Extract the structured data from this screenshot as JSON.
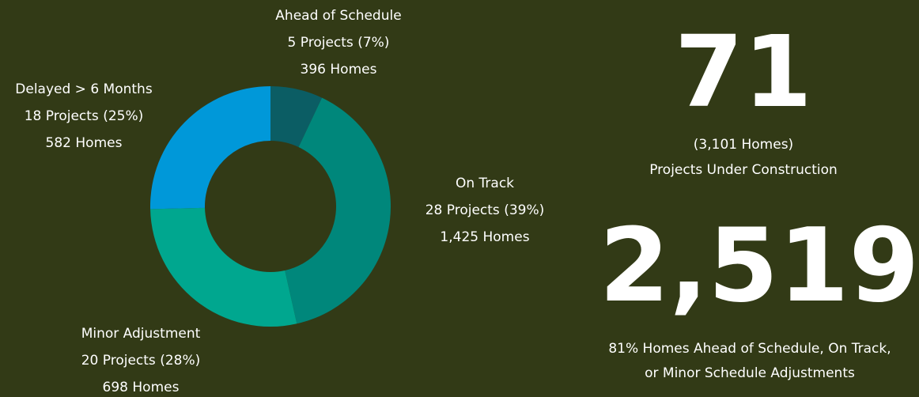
{
  "chart_data": {
    "type": "donut",
    "categories": [
      "Ahead of Schedule",
      "On Track",
      "Minor Adjustment",
      "Delayed > 6 Months"
    ],
    "values": [
      5,
      28,
      20,
      18
    ],
    "value_labels": [
      "5 Projects (7%)",
      "28 Projects (39%)",
      "20 Projects (28%)",
      "18 Projects (25%)"
    ],
    "homes": [
      396,
      1425,
      698,
      582
    ],
    "homes_labels": [
      "396 Homes",
      "1,425 Homes",
      "698 Homes",
      "582 Homes"
    ],
    "colors": [
      "#0b5d64",
      "#00877b",
      "#00a78f",
      "#0098d9"
    ]
  },
  "kpis": [
    {
      "value": "71",
      "lines": [
        "(3,101 Homes)",
        "Projects Under Construction"
      ]
    },
    {
      "value": "2,519",
      "lines": [
        "81% Homes Ahead of Schedule, On Track,",
        "or Minor Schedule Adjustments"
      ]
    }
  ]
}
